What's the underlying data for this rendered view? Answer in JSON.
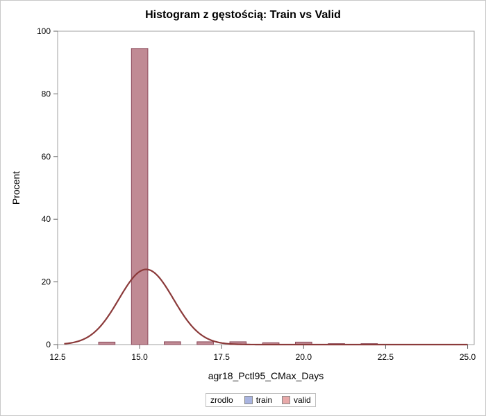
{
  "chart_data": {
    "type": "bar",
    "title": "Histogram z gęstością: Train vs Valid",
    "xlabel": "agr18_Pctl95_CMax_Days",
    "ylabel": "Procent",
    "xlim": [
      12.5,
      25.2
    ],
    "ylim": [
      0,
      100
    ],
    "x_ticks": [
      "12.5",
      "15.0",
      "17.5",
      "20.0",
      "22.5",
      "25.0"
    ],
    "x_tick_values": [
      12.5,
      15.0,
      17.5,
      20.0,
      22.5,
      25.0
    ],
    "y_ticks": [
      "0",
      "20",
      "40",
      "60",
      "80",
      "100"
    ],
    "y_tick_values": [
      0,
      20,
      40,
      60,
      80,
      100
    ],
    "bin_width": 0.5,
    "series": [
      {
        "name": "valid",
        "color": "#e8a9a9",
        "bins": [
          {
            "x": 14.0,
            "y": 0.8
          },
          {
            "x": 15.0,
            "y": 94.5
          },
          {
            "x": 16.0,
            "y": 0.9
          },
          {
            "x": 17.0,
            "y": 0.9
          },
          {
            "x": 18.0,
            "y": 0.9
          },
          {
            "x": 19.0,
            "y": 0.6
          },
          {
            "x": 20.0,
            "y": 0.8
          },
          {
            "x": 21.0,
            "y": 0.3
          },
          {
            "x": 22.0,
            "y": 0.3
          }
        ]
      },
      {
        "name": "train",
        "color": "#a9b4e0",
        "bins": [
          {
            "x": 14.0,
            "y": 0.8
          },
          {
            "x": 15.0,
            "y": 94.5
          },
          {
            "x": 16.0,
            "y": 0.9
          },
          {
            "x": 17.0,
            "y": 0.9
          },
          {
            "x": 18.0,
            "y": 0.9
          },
          {
            "x": 19.0,
            "y": 0.6
          },
          {
            "x": 20.0,
            "y": 0.8
          },
          {
            "x": 21.0,
            "y": 0.3
          },
          {
            "x": 22.0,
            "y": 0.3
          }
        ]
      }
    ],
    "overlap_color": "#c08a94",
    "density": {
      "type": "normal",
      "mean": 15.2,
      "sd": 0.83,
      "peak": 24,
      "x_range": [
        12.7,
        25.0
      ],
      "color": "#8b3a3a"
    },
    "legend": {
      "position": "bottom",
      "title": "zrodlo",
      "entries": [
        {
          "label": "train",
          "color": "#a9b4e0"
        },
        {
          "label": "valid",
          "color": "#e8a9a9"
        }
      ]
    },
    "grid": false
  }
}
